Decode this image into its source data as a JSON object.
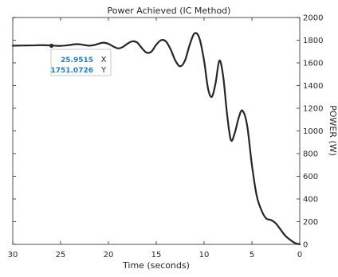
{
  "chart_data": {
    "type": "line",
    "title": "Power Achieved (IC Method)",
    "xlabel": "Time (seconds)",
    "ylabel": "POWER (W)",
    "xlim": [
      0,
      30
    ],
    "ylim": [
      0,
      2000
    ],
    "x_reversed": true,
    "y_axis_side": "right",
    "mirrored_image": true,
    "x_ticks": [
      0,
      5,
      10,
      15,
      20,
      25,
      30
    ],
    "y_ticks": [
      0,
      200,
      400,
      600,
      800,
      1000,
      1200,
      1400,
      1600,
      1800,
      2000
    ],
    "grid": false,
    "line_color": "#262626",
    "series": [
      {
        "points": [
          [
            0,
            0
          ],
          [
            0.5,
            12
          ],
          [
            1.0,
            40
          ],
          [
            1.5,
            75
          ],
          [
            2.0,
            130
          ],
          [
            2.5,
            185
          ],
          [
            3.0,
            215
          ],
          [
            3.5,
            228
          ],
          [
            4.0,
            300
          ],
          [
            4.5,
            430
          ],
          [
            5.0,
            700
          ],
          [
            5.5,
            1050
          ],
          [
            6.0,
            1180
          ],
          [
            6.4,
            1110
          ],
          [
            6.8,
            980
          ],
          [
            7.2,
            920
          ],
          [
            7.6,
            1150
          ],
          [
            8.0,
            1480
          ],
          [
            8.4,
            1620
          ],
          [
            8.8,
            1420
          ],
          [
            9.2,
            1300
          ],
          [
            9.6,
            1380
          ],
          [
            10.0,
            1620
          ],
          [
            10.5,
            1820
          ],
          [
            11.0,
            1860
          ],
          [
            11.5,
            1760
          ],
          [
            12.0,
            1620
          ],
          [
            12.5,
            1570
          ],
          [
            13.0,
            1620
          ],
          [
            13.5,
            1720
          ],
          [
            14.0,
            1790
          ],
          [
            14.5,
            1800
          ],
          [
            15.0,
            1760
          ],
          [
            15.5,
            1700
          ],
          [
            16.0,
            1690
          ],
          [
            16.5,
            1730
          ],
          [
            17.0,
            1780
          ],
          [
            17.5,
            1790
          ],
          [
            18.0,
            1770
          ],
          [
            18.5,
            1740
          ],
          [
            19.0,
            1728
          ],
          [
            19.5,
            1745
          ],
          [
            20.0,
            1768
          ],
          [
            20.5,
            1778
          ],
          [
            21.0,
            1770
          ],
          [
            21.5,
            1757
          ],
          [
            22.0,
            1752
          ],
          [
            22.5,
            1757
          ],
          [
            23.0,
            1764
          ],
          [
            23.5,
            1764
          ],
          [
            24.0,
            1758
          ],
          [
            24.5,
            1753
          ],
          [
            25.0,
            1750
          ],
          [
            25.5,
            1751
          ],
          [
            26.0,
            1754
          ],
          [
            27.0,
            1756
          ],
          [
            28.0,
            1754
          ],
          [
            29.0,
            1753
          ],
          [
            30.0,
            1752
          ]
        ]
      }
    ],
    "datatip": {
      "x": 25.9515,
      "y": 1751.0726,
      "x_label": "X",
      "y_label": "Y",
      "x_text": "25.9515",
      "y_text": "1751.0726"
    }
  }
}
